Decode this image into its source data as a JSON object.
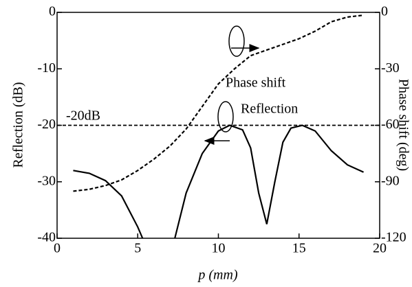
{
  "chart_data": {
    "type": "line",
    "xlabel": "p (mm)",
    "ylabel": "Reflection (dB)",
    "y2label": "Phase shift (deg)",
    "xlim": [
      0,
      20
    ],
    "xticks": [
      0,
      5,
      10,
      15,
      20
    ],
    "ylim": [
      -40,
      0
    ],
    "yticks": [
      -40,
      -30,
      -20,
      -10,
      0
    ],
    "y2lim": [
      -120,
      0
    ],
    "y2ticks": [
      -120,
      -90,
      -60,
      -30,
      0
    ],
    "series": [
      {
        "name": "Reflection",
        "color": "#000000",
        "dash": "solid",
        "x": [
          1,
          2,
          3,
          4,
          5,
          5.3,
          6.3,
          7.3,
          8,
          9,
          10,
          10.7,
          11.5,
          12,
          12.5,
          13,
          13.5,
          14,
          14.5,
          15.2,
          16,
          17,
          18,
          19
        ],
        "values": [
          -28,
          -28.5,
          -29.8,
          -32.5,
          -38,
          -40,
          null,
          -40,
          -32,
          -25,
          -21,
          -20,
          -20.8,
          -24,
          -32,
          -37.5,
          -30,
          -23,
          -20.5,
          -20,
          -21,
          -24.5,
          -27,
          -28.3
        ]
      },
      {
        "name": "Phase shift",
        "color": "#000000",
        "dash": "dashed",
        "axis": "y2",
        "x": [
          1,
          2,
          3,
          4,
          5,
          6,
          7,
          8,
          9,
          10,
          11,
          12,
          13,
          14,
          15,
          16,
          17,
          18,
          19
        ],
        "values": [
          -95,
          -94,
          -92,
          -89,
          -84,
          -78,
          -71,
          -62,
          -50,
          -38,
          -30,
          -23,
          -20,
          -17,
          -14,
          -10,
          -5,
          -2.5,
          -1.5
        ]
      }
    ],
    "reference_line": {
      "value": -20,
      "label": "-20dB"
    }
  }
}
